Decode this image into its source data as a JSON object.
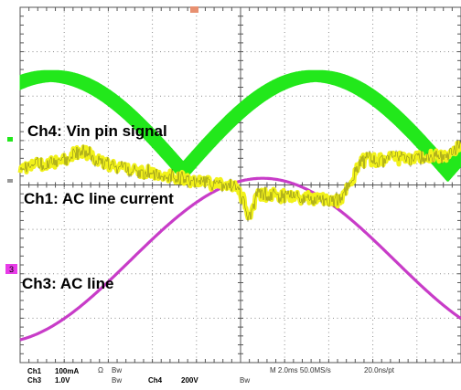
{
  "chart_data": {
    "type": "line",
    "title": "",
    "xlabel": "",
    "ylabel": "",
    "grid": true,
    "x_divisions": 10,
    "y_divisions": 8,
    "series": [
      {
        "name": "Ch4: Vin pin signal",
        "channel": "Ch4",
        "color": "#22e81b",
        "shape": "rectified-sine (full-wave), thick noisy band",
        "cusps_div": [
          -1.3,
          4.7
        ],
        "peaks_div": [
          1.7
        ],
        "peak_level_div": 1.25,
        "cusp_level_div": -0.9,
        "band_thickness_div": 0.45,
        "center_level_div": 2.6
      },
      {
        "name": "Ch1: AC line current",
        "channel": "Ch1",
        "color": "#f2f21a",
        "shape": "noisy current waveform with step near cusp, trough near center",
        "center_level_div": 0.2
      },
      {
        "name": "Ch3: AC line",
        "channel": "Ch3",
        "color": "#c83cc8",
        "shape": "sine, peak near center",
        "peak_time_div": 0.5,
        "amplitude_div": 1.85,
        "offset_div": -1.7
      }
    ],
    "labels": {
      "ch4": "Ch4: Vin pin signal",
      "ch1": "Ch1: AC line current",
      "ch3": "Ch3: AC line"
    }
  },
  "footer": {
    "ch1_label": "Ch1",
    "ch1_scale": "100mA",
    "ch1_cpl": "Ω",
    "ch1_bw": "Bw",
    "ch3_label": "Ch3",
    "ch3_scale": "1.0V",
    "ch3_bw": "Bw",
    "ch4_label": "Ch4",
    "ch4_scale": "200V",
    "ch4_bw": "Bw",
    "timebase": "M 2.0ms 50.0MS/s",
    "resolution": "20.0ns/pt"
  },
  "markers": {
    "ch3_marker": "3"
  },
  "colors": {
    "ch4": "#22e81b",
    "ch1": "#f2f21a",
    "ch3": "#c83cc8",
    "grid": "#8c8c8c",
    "marker": "#e83ce8"
  }
}
